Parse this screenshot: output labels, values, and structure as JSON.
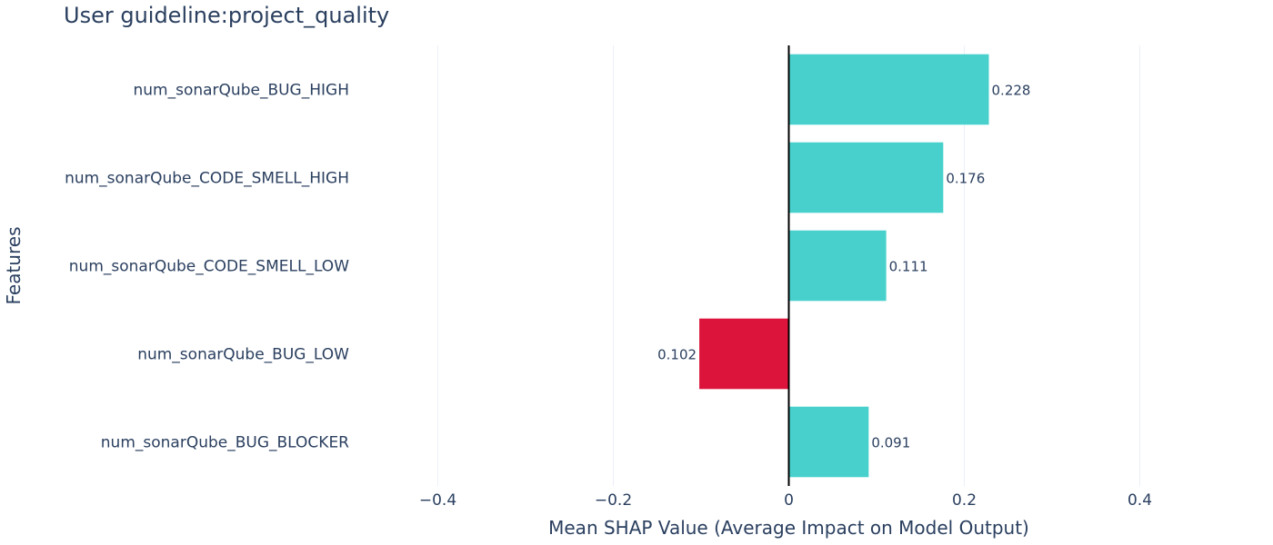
{
  "chart_data": {
    "type": "bar",
    "orientation": "horizontal",
    "title": "User guideline:project_quality",
    "xlabel": "Mean SHAP Value (Average Impact on Model Output)",
    "ylabel": "Features",
    "xlim": [
      -0.5,
      0.5
    ],
    "xticks": [
      -0.4,
      -0.2,
      0,
      0.2,
      0.4
    ],
    "xtick_labels": [
      "−0.4",
      "−0.2",
      "0",
      "0.2",
      "0.4"
    ],
    "grid": true,
    "categories": [
      "num_sonarQube_BUG_HIGH",
      "num_sonarQube_CODE_SMELL_HIGH",
      "num_sonarQube_CODE_SMELL_LOW",
      "num_sonarQube_BUG_LOW",
      "num_sonarQube_BUG_BLOCKER"
    ],
    "values": [
      0.228,
      0.176,
      0.111,
      -0.102,
      0.091
    ],
    "value_labels": [
      "0.228",
      "0.176",
      "0.111",
      "0.102",
      "0.091"
    ],
    "colors": {
      "positive": "#48d1cc",
      "negative": "#dc143c"
    }
  }
}
